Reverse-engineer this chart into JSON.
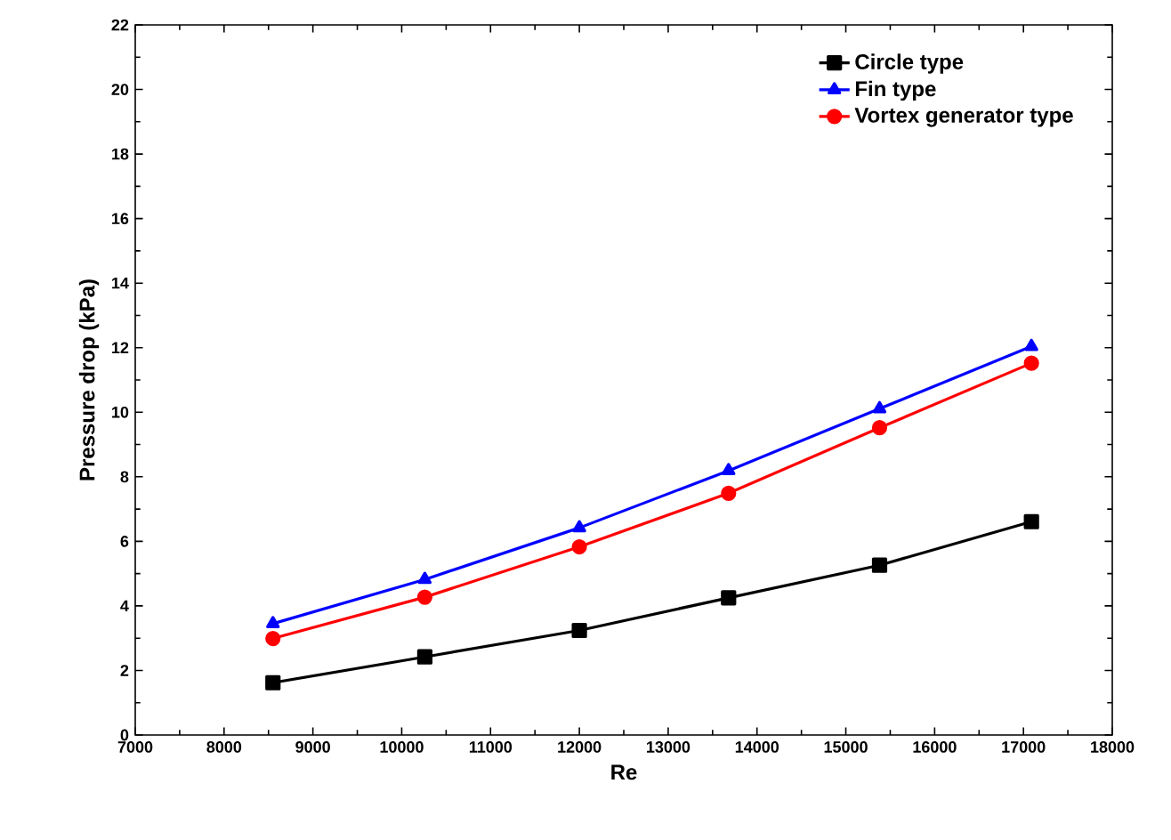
{
  "chart_data": {
    "type": "line",
    "xlabel": "Re",
    "ylabel": "Pressure drop (kPa)",
    "x": [
      8550,
      10260,
      12000,
      13680,
      15380,
      17090
    ],
    "series": [
      {
        "name": "Circle type",
        "color": "#000000",
        "marker": "square",
        "values": [
          1.62,
          2.42,
          3.24,
          4.25,
          5.26,
          6.61
        ]
      },
      {
        "name": "Fin type",
        "color": "#0000ff",
        "marker": "triangle",
        "values": [
          3.45,
          4.82,
          6.42,
          8.19,
          10.11,
          12.04
        ]
      },
      {
        "name": "Vortex generator type",
        "color": "#ff0000",
        "marker": "circle",
        "values": [
          2.99,
          4.27,
          5.83,
          7.49,
          9.52,
          11.52
        ]
      }
    ],
    "xlim": [
      7000,
      18000
    ],
    "xticks": [
      7000,
      8000,
      9000,
      10000,
      11000,
      12000,
      13000,
      14000,
      15000,
      16000,
      17000,
      18000
    ],
    "ylim": [
      0,
      22
    ],
    "yticks": [
      0,
      2,
      4,
      6,
      8,
      10,
      12,
      14,
      16,
      18,
      20,
      22
    ],
    "grid": false,
    "legend": "top right",
    "line_style": "solid"
  }
}
